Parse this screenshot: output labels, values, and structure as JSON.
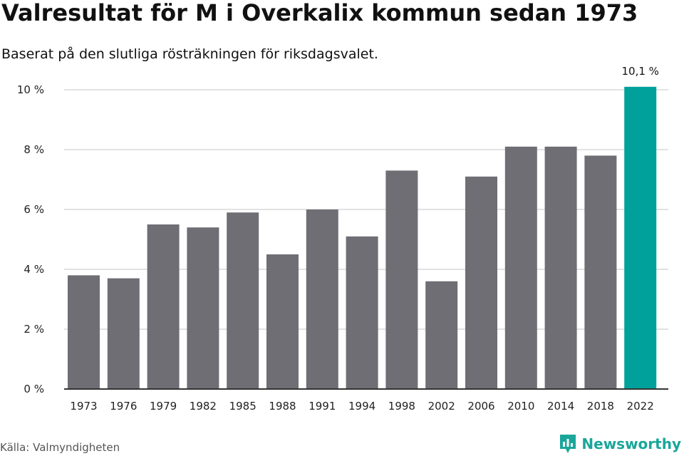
{
  "title": "Valresultat för M i Overkalix kommun sedan 1973",
  "subtitle": "Baserat på den slutliga rösträkningen för riksdagsvalet.",
  "source": "Källa: Valmyndigheten",
  "brand": {
    "name": "Newsworthy",
    "icon": "newsworthy-logo-icon",
    "color": "#1aa69a"
  },
  "colors": {
    "bar": "#6f6e74",
    "highlight": "#00a19a",
    "grid": "#d9d9d9",
    "axis": "#333333"
  },
  "chart_data": {
    "type": "bar",
    "title": "Valresultat för M i Overkalix kommun sedan 1973",
    "subtitle": "Baserat på den slutliga rösträkningen för riksdagsvalet.",
    "xlabel": "",
    "ylabel": "",
    "categories": [
      "1973",
      "1976",
      "1979",
      "1982",
      "1985",
      "1988",
      "1991",
      "1994",
      "1998",
      "2002",
      "2006",
      "2010",
      "2014",
      "2018",
      "2022"
    ],
    "values": [
      3.8,
      3.7,
      5.5,
      5.4,
      5.9,
      4.5,
      6.0,
      5.1,
      7.3,
      3.6,
      7.1,
      8.1,
      8.1,
      7.8,
      10.1
    ],
    "unit": "%",
    "ylim": [
      0,
      10
    ],
    "yticks": [
      0,
      2,
      4,
      6,
      8,
      10
    ],
    "ytick_labels": [
      "0 %",
      "2 %",
      "4 %",
      "6 %",
      "8 %",
      "10 %"
    ],
    "highlight_index": 14,
    "annotations": [
      {
        "category": "2022",
        "label": "10,1 %"
      }
    ],
    "grid": true,
    "legend": "none"
  }
}
